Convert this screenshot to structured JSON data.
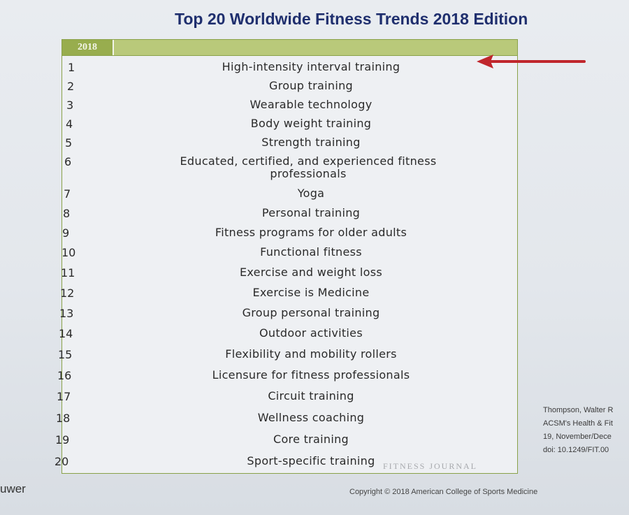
{
  "slide": {
    "title": "Top 20 Worldwide Fitness Trends 2018 Edition"
  },
  "table": {
    "header_year": "2018",
    "rows": [
      {
        "rank": "1",
        "trend": "High-intensity interval training"
      },
      {
        "rank": "2",
        "trend": "Group training"
      },
      {
        "rank": "3",
        "trend": "Wearable technology"
      },
      {
        "rank": "4",
        "trend": "Body weight training"
      },
      {
        "rank": "5",
        "trend": "Strength training"
      },
      {
        "rank": "6",
        "trend": "Educated, certified, and experienced fitness professionals"
      },
      {
        "rank": "7",
        "trend": "Yoga"
      },
      {
        "rank": "8",
        "trend": "Personal training"
      },
      {
        "rank": "9",
        "trend": "Fitness programs for older adults"
      },
      {
        "rank": "10",
        "trend": "Functional fitness"
      },
      {
        "rank": "11",
        "trend": "Exercise and weight loss"
      },
      {
        "rank": "12",
        "trend": "Exercise is Medicine"
      },
      {
        "rank": "13",
        "trend": "Group personal training"
      },
      {
        "rank": "14",
        "trend": "Outdoor activities"
      },
      {
        "rank": "15",
        "trend": "Flexibility and mobility rollers"
      },
      {
        "rank": "16",
        "trend": "Licensure for fitness professionals"
      },
      {
        "rank": "17",
        "trend": "Circuit training"
      },
      {
        "rank": "18",
        "trend": "Wellness coaching"
      },
      {
        "rank": "19",
        "trend": "Core training"
      },
      {
        "rank": "20",
        "trend": "Sport-specific training"
      }
    ],
    "watermark": "FITNESS JOURNAL"
  },
  "citation": {
    "line1": "Thompson, Walter R",
    "line2": "ACSM's Health & Fit",
    "line3": "19, November/Dece",
    "line4": "doi: 10.1249/FIT.00"
  },
  "footer": {
    "publisher_fragment": "uwer",
    "copyright": "Copyright © 2018 American College of Sports Medicine"
  },
  "colors": {
    "title": "#1f2f6e",
    "header_green": "#b9c97a",
    "header_year_green": "#98ad4e",
    "arrow_red": "#c0262c"
  },
  "icons": {
    "arrow": "arrow-left-icon"
  }
}
